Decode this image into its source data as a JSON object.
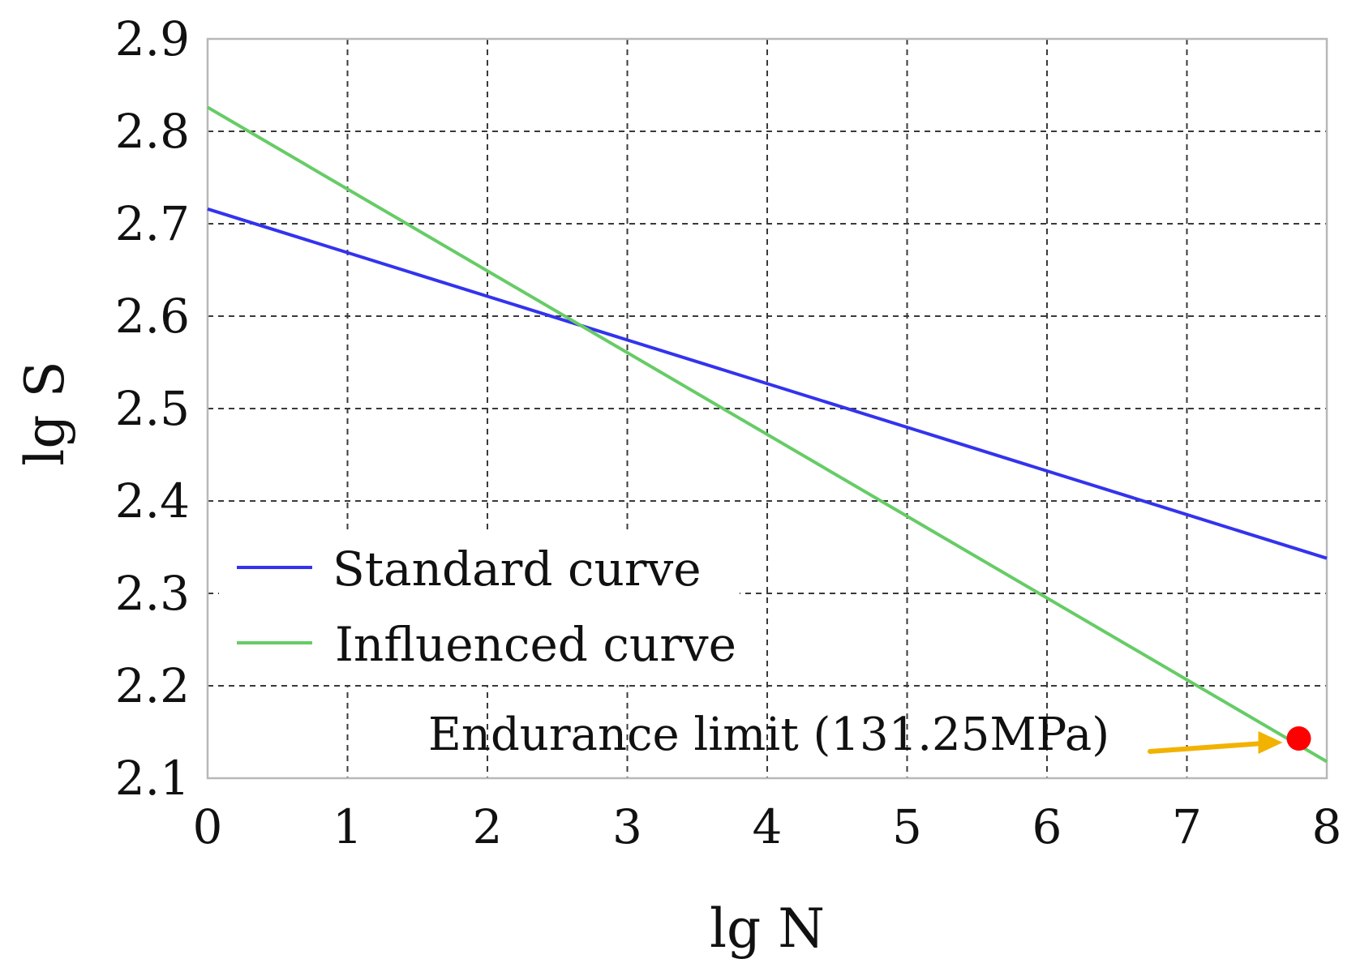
{
  "chart_data": {
    "type": "line",
    "title": "",
    "xlabel": "lg N",
    "ylabel": "lg S",
    "xlim": [
      0,
      8
    ],
    "ylim": [
      2.1,
      2.9
    ],
    "xticks": [
      "0",
      "1",
      "2",
      "3",
      "4",
      "5",
      "6",
      "7",
      "8"
    ],
    "yticks": [
      "2.1",
      "2.2",
      "2.3",
      "2.4",
      "2.5",
      "2.6",
      "2.7",
      "2.8",
      "2.9"
    ],
    "grid": true,
    "legend_position": "lower-left",
    "series": [
      {
        "name": "Standard curve",
        "color": "#3333ee",
        "x": [
          0,
          8
        ],
        "y": [
          2.716,
          2.338
        ]
      },
      {
        "name": "Influenced curve",
        "color": "#66cc66",
        "x": [
          0,
          8
        ],
        "y": [
          2.826,
          2.118
        ]
      }
    ],
    "annotations": [
      {
        "text": "Endurance limit (131.25MPa)",
        "point_x": 7.8,
        "point_y": 2.143,
        "marker_color": "#ff0000",
        "arrow_color": "#f2b200"
      }
    ]
  }
}
